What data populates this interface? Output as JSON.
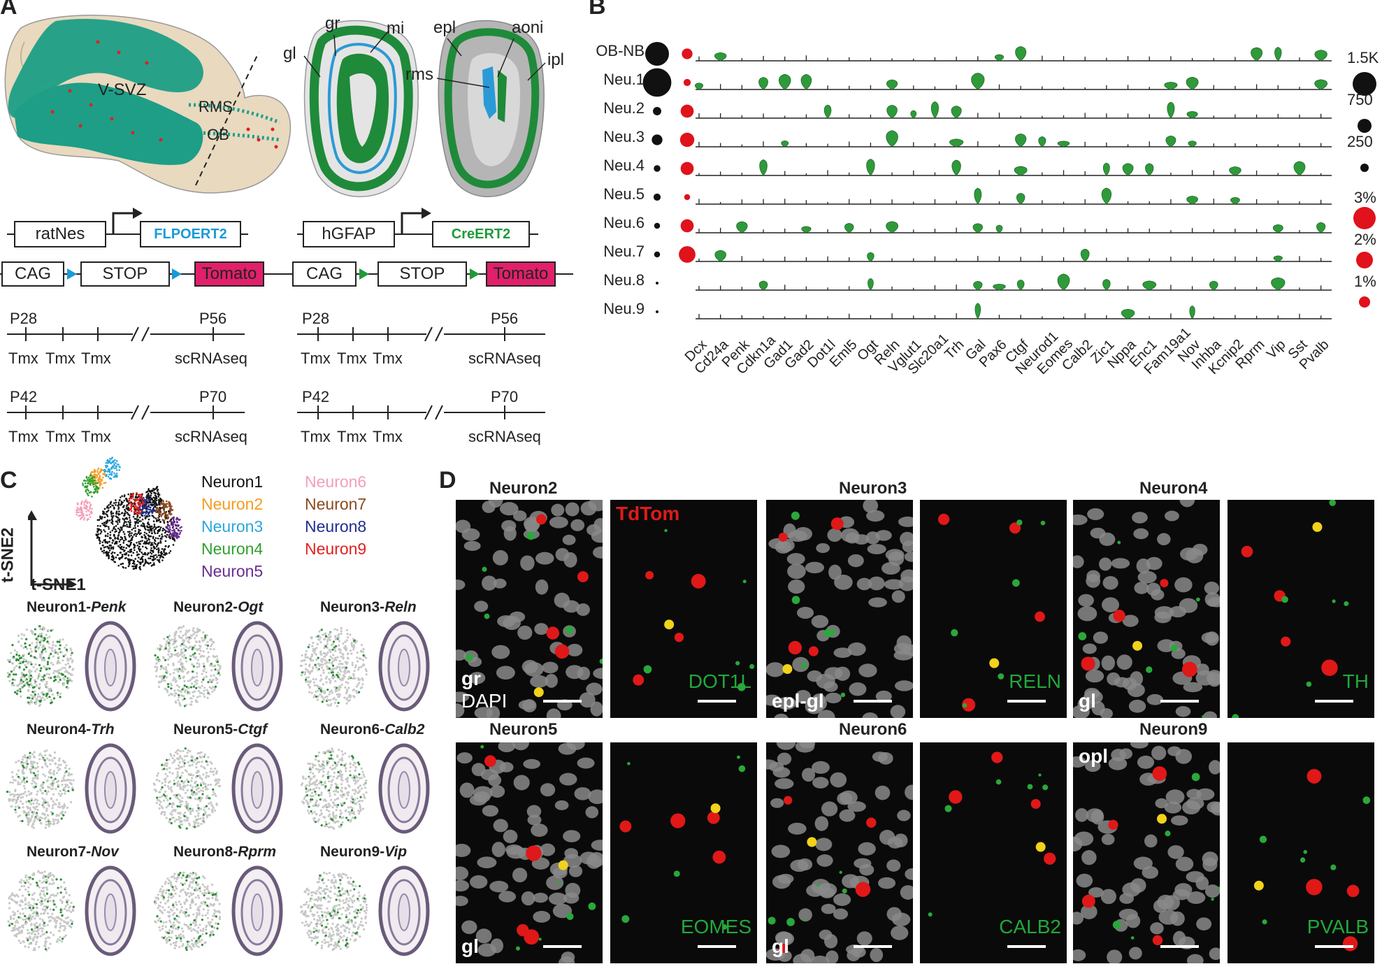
{
  "panels": {
    "A": "A",
    "B": "B",
    "C": "C",
    "D": "D"
  },
  "panelA": {
    "brain_labels": {
      "vsvz": "V-SVZ",
      "rms": "RMS",
      "ob": "OB"
    },
    "section1_labels": {
      "gl": "gl",
      "gr": "gr",
      "mi": "mi"
    },
    "section2_labels": {
      "epl": "epl",
      "aoni": "aoni",
      "rms": "rms",
      "ipl": "ipl"
    },
    "construct_left": {
      "promoter": "ratNes",
      "gene": "FLPOERT2",
      "cag": "CAG",
      "stop": "STOP",
      "reporter": "Tomato"
    },
    "construct_right": {
      "promoter": "hGFAP",
      "gene": "CreERT2",
      "cag": "CAG",
      "stop": "STOP",
      "reporter": "Tomato"
    },
    "timelines": [
      {
        "start": "P28",
        "end": "P56",
        "tmx": [
          "Tmx",
          "Tmx",
          "Tmx"
        ],
        "assay": "scRNAseq"
      },
      {
        "start": "P42",
        "end": "P70",
        "tmx": [
          "Tmx",
          "Tmx",
          "Tmx"
        ],
        "assay": "scRNAseq"
      },
      {
        "start": "P28",
        "end": "P56",
        "tmx": [
          "Tmx",
          "Tmx",
          "Tmx"
        ],
        "assay": "scRNAseq"
      },
      {
        "start": "P42",
        "end": "P70",
        "tmx": [
          "Tmx",
          "Tmx",
          "Tmx"
        ],
        "assay": "scRNAseq"
      }
    ],
    "colors": {
      "flp": "#1a9ad6",
      "cre": "#1f9a3a",
      "tomato": "#e0206a",
      "tissue": "#e8d9bf",
      "green": "#1f8a3a",
      "teal": "#1e9e86"
    }
  },
  "panelB": {
    "rows": [
      "OB-NB",
      "Neu.1",
      "Neu.2",
      "Neu.3",
      "Neu.4",
      "Neu.5",
      "Neu.6",
      "Neu.7",
      "Neu.8",
      "Neu.9"
    ],
    "black_dot_size": [
      1.0,
      1.2,
      0.35,
      0.45,
      0.28,
      0.3,
      0.25,
      0.25,
      0.1,
      0.1
    ],
    "red_dot_size": [
      0.45,
      0.3,
      0.55,
      0.6,
      0.55,
      0.25,
      0.55,
      0.7,
      0,
      0
    ],
    "genes": [
      "Dcx",
      "Cd24a",
      "Penk",
      "Cdkn1a",
      "Gad1",
      "Gad2",
      "Dot1l",
      "Eml5",
      "Ogt",
      "Reln",
      "Vglut1",
      "Slc20a1",
      "Trh",
      "Gal",
      "Pax6",
      "Ctgf",
      "Neurod1",
      "Eomes",
      "Calb2",
      "Zic1",
      "Nppa",
      "Enc1",
      "Fam19a1",
      "Nov",
      "Inhba",
      "Kcnip2",
      "Rprm",
      "Vip",
      "Sst",
      "Pvalb"
    ],
    "size_legend": [
      "1.5K",
      "750",
      "250"
    ],
    "pct_legend": [
      "3%",
      "2%",
      "1%"
    ]
  },
  "panelC": {
    "axis_y": "t-SNE2",
    "axis_x": "t-SNE1",
    "legend": [
      {
        "name": "Neuron1",
        "color": "#111111"
      },
      {
        "name": "Neuron2",
        "color": "#f39c1f"
      },
      {
        "name": "Neuron3",
        "color": "#2aa6de"
      },
      {
        "name": "Neuron4",
        "color": "#2fa02f"
      },
      {
        "name": "Neuron5",
        "color": "#6a2c91"
      },
      {
        "name": "Neuron6",
        "color": "#f2a0b9"
      },
      {
        "name": "Neuron7",
        "color": "#8b4a1e"
      },
      {
        "name": "Neuron8",
        "color": "#1f2f8f"
      },
      {
        "name": "Neuron9",
        "color": "#e0221f"
      }
    ],
    "plots": [
      {
        "prefix": "Neuron1-",
        "gene": "Penk"
      },
      {
        "prefix": "Neuron2-",
        "gene": "Ogt"
      },
      {
        "prefix": "Neuron3-",
        "gene": "Reln"
      },
      {
        "prefix": "Neuron4-",
        "gene": "Trh"
      },
      {
        "prefix": "Neuron5-",
        "gene": "Ctgf"
      },
      {
        "prefix": "Neuron6-",
        "gene": "Calb2"
      },
      {
        "prefix": "Neuron7-",
        "gene": "Nov"
      },
      {
        "prefix": "Neuron8-",
        "gene": "Rprm"
      },
      {
        "prefix": "Neuron9-",
        "gene": "Vip"
      }
    ]
  },
  "panelD": {
    "titles": [
      "Neuron2",
      "Neuron3",
      "Neuron4",
      "Neuron5",
      "Neuron6",
      "Neuron9"
    ],
    "images": [
      {
        "label_tl": "",
        "label_bl": "gr",
        "label_bl2": "DAPI",
        "label_br": ""
      },
      {
        "label_tl": "TdTom",
        "label_br": "DOT1L"
      },
      {
        "label_bl": "epl-gl",
        "label_br": ""
      },
      {
        "label_br": "RELN"
      },
      {
        "label_bl": "gl",
        "label_br": ""
      },
      {
        "label_br": "TH"
      },
      {
        "label_bl": "gl",
        "label_br": ""
      },
      {
        "label_br": "EOMES"
      },
      {
        "label_bl": "gl",
        "label_br": ""
      },
      {
        "label_br": "CALB2"
      },
      {
        "label_tl": "opl",
        "label_br": ""
      },
      {
        "label_br": "PVALB"
      }
    ]
  }
}
